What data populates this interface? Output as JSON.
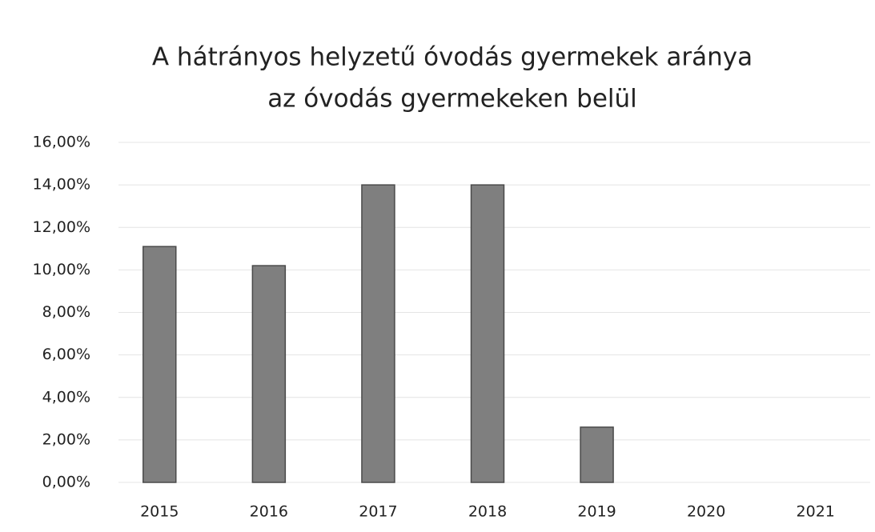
{
  "chart_data": {
    "type": "bar",
    "title": [
      "A hátrányos helyzetű óvodás gyermekek aránya",
      "az óvodás gyermekeken belül"
    ],
    "categories": [
      "2015",
      "2016",
      "2017",
      "2018",
      "2019",
      "2020",
      "2021"
    ],
    "values": [
      11.1,
      10.2,
      14.0,
      14.0,
      2.6,
      null,
      null
    ],
    "color": "#7f7f7f",
    "ylim": [
      0,
      16
    ],
    "yticks": [
      {
        "value": 0,
        "label": "0,00%"
      },
      {
        "value": 2,
        "label": "2,00%"
      },
      {
        "value": 4,
        "label": "4,00%"
      },
      {
        "value": 6,
        "label": "6,00%"
      },
      {
        "value": 8,
        "label": "8,00%"
      },
      {
        "value": 10,
        "label": "10,00%"
      },
      {
        "value": 12,
        "label": "12,00%"
      },
      {
        "value": 14,
        "label": "14,00%"
      },
      {
        "value": 16,
        "label": "16,00%"
      }
    ],
    "grid": true
  }
}
